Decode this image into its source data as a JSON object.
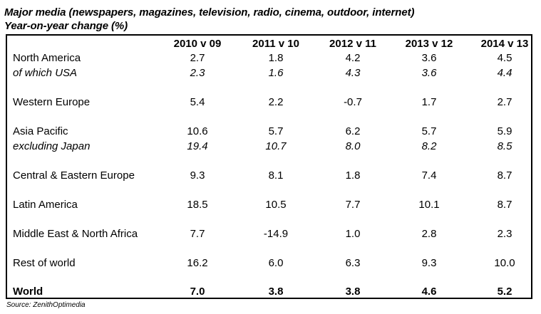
{
  "title": {
    "line1": "Major media (newspapers, magazines, television, radio, cinema, outdoor, internet)",
    "line2": "Year-on-year change (%)"
  },
  "columns": [
    "2010 v 09",
    "2011 v 10",
    "2012 v 11",
    "2013 v 12",
    "2014 v 13"
  ],
  "rows": [
    {
      "label": "North America",
      "values": [
        "2.7",
        "1.8",
        "4.2",
        "3.6",
        "4.5"
      ],
      "style": "normal"
    },
    {
      "label": "of which USA",
      "values": [
        "2.3",
        "1.6",
        "4.3",
        "3.6",
        "4.4"
      ],
      "style": "italic"
    },
    {
      "label": "Western Europe",
      "values": [
        "5.4",
        "2.2",
        "-0.7",
        "1.7",
        "2.7"
      ],
      "style": "normal"
    },
    {
      "label": "Asia Pacific",
      "values": [
        "10.6",
        "5.7",
        "6.2",
        "5.7",
        "5.9"
      ],
      "style": "normal"
    },
    {
      "label": "excluding Japan",
      "values": [
        "19.4",
        "10.7",
        "8.0",
        "8.2",
        "8.5"
      ],
      "style": "italic"
    },
    {
      "label": "Central & Eastern Europe",
      "values": [
        "9.3",
        "8.1",
        "1.8",
        "7.4",
        "8.7"
      ],
      "style": "normal"
    },
    {
      "label": "Latin America",
      "values": [
        "18.5",
        "10.5",
        "7.7",
        "10.1",
        "8.7"
      ],
      "style": "normal"
    },
    {
      "label": "Middle East & North Africa",
      "values": [
        "7.7",
        "-14.9",
        "1.0",
        "2.8",
        "2.3"
      ],
      "style": "normal"
    },
    {
      "label": "Rest of world",
      "values": [
        "16.2",
        "6.0",
        "6.3",
        "9.3",
        "10.0"
      ],
      "style": "normal"
    },
    {
      "label": "World",
      "values": [
        "7.0",
        "3.8",
        "3.8",
        "4.6",
        "5.2"
      ],
      "style": "bold"
    }
  ],
  "source": "Source: ZenithOptimedia"
}
